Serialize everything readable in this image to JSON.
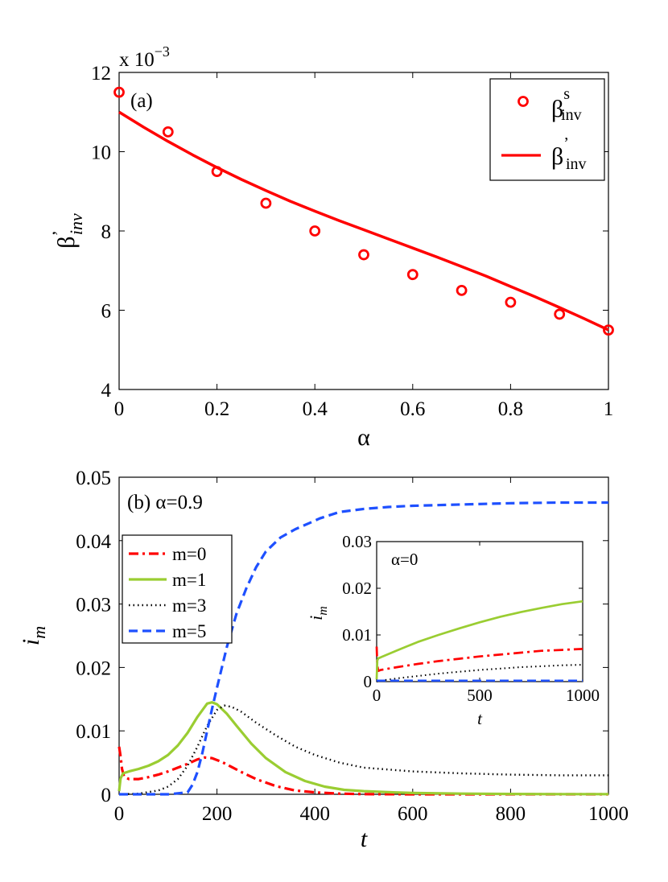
{
  "colors": {
    "red": "#ff0000",
    "green": "#9acd32",
    "black": "#000000",
    "blue": "#1e50ff"
  },
  "chart_data": [
    {
      "type": "line",
      "panel_label": "(a)",
      "exponent_label": "x 10",
      "exponent_power": "−3",
      "xlabel": "α",
      "ylabel": "β",
      "ylabel_prime": "’",
      "ylabel_sub": "inv",
      "xlim": [
        0,
        1
      ],
      "ylim": [
        4,
        12
      ],
      "x_ticks": [
        "0",
        "0.2",
        "0.4",
        "0.6",
        "0.8",
        "1"
      ],
      "y_ticks": [
        "4",
        "6",
        "8",
        "10",
        "12"
      ],
      "legend_position": "top-right",
      "legend": [
        {
          "symbol": "β",
          "sup": "s",
          "sub": "inv"
        },
        {
          "symbol": "β",
          "sup": "’",
          "sub": "inv"
        }
      ],
      "series": [
        {
          "name": "β^s_inv",
          "style": "markers-circle",
          "x": [
            0,
            0.1,
            0.2,
            0.3,
            0.4,
            0.5,
            0.6,
            0.7,
            0.8,
            0.9,
            1.0
          ],
          "y": [
            11.5,
            10.5,
            9.5,
            8.7,
            8.0,
            7.4,
            6.9,
            6.5,
            6.2,
            5.9,
            5.5
          ]
        },
        {
          "name": "β'_inv",
          "style": "solid-line",
          "x": [
            0,
            0.05,
            0.1,
            0.15,
            0.2,
            0.25,
            0.3,
            0.35,
            0.4,
            0.45,
            0.5,
            0.55,
            0.6,
            0.65,
            0.7,
            0.75,
            0.8,
            0.85,
            0.9,
            0.95,
            1.0
          ],
          "y": [
            11.0,
            10.62,
            10.26,
            9.92,
            9.6,
            9.3,
            9.02,
            8.75,
            8.5,
            8.26,
            8.03,
            7.8,
            7.57,
            7.34,
            7.1,
            6.86,
            6.6,
            6.34,
            6.07,
            5.79,
            5.5
          ]
        }
      ]
    },
    {
      "type": "line",
      "panel_label": "(b) α=0.9",
      "xlabel": "t",
      "ylabel": "i",
      "ylabel_sub": "m",
      "xlim": [
        0,
        1000
      ],
      "ylim": [
        0,
        0.05
      ],
      "x_ticks": [
        "0",
        "200",
        "400",
        "600",
        "800",
        "1000"
      ],
      "y_ticks": [
        "0",
        "0.01",
        "0.02",
        "0.03",
        "0.04",
        "0.05"
      ],
      "legend_position": "middle-left",
      "legend": [
        "m=0",
        "m=1",
        "m=3",
        "m=5"
      ],
      "series": [
        {
          "name": "m=0",
          "style": "dash-dot-red",
          "x": [
            0,
            3,
            6,
            10,
            20,
            40,
            60,
            80,
            100,
            120,
            140,
            160,
            175,
            190,
            210,
            230,
            250,
            280,
            320,
            360,
            400,
            450,
            500,
            600,
            700,
            800,
            900,
            1000
          ],
          "y": [
            0.0075,
            0.006,
            0.004,
            0.0028,
            0.0024,
            0.0024,
            0.0027,
            0.0031,
            0.0036,
            0.0042,
            0.0048,
            0.0055,
            0.0058,
            0.0057,
            0.0051,
            0.0043,
            0.0035,
            0.0024,
            0.0013,
            0.0006,
            0.0003,
            0.0001,
            3e-05,
            0,
            0,
            0,
            0,
            0
          ]
        },
        {
          "name": "m=1",
          "style": "solid-green",
          "x": [
            0,
            3,
            8,
            20,
            40,
            60,
            80,
            100,
            120,
            140,
            160,
            180,
            190,
            200,
            220,
            240,
            270,
            300,
            340,
            380,
            420,
            460,
            500,
            560,
            600,
            700,
            800,
            900,
            1000
          ],
          "y": [
            0.0005,
            0.0025,
            0.0033,
            0.0036,
            0.004,
            0.0045,
            0.0052,
            0.0062,
            0.0077,
            0.0097,
            0.0122,
            0.0143,
            0.0145,
            0.0142,
            0.0127,
            0.0108,
            0.008,
            0.0057,
            0.0035,
            0.0021,
            0.0012,
            0.0007,
            0.0005,
            0.0003,
            0.0002,
            0.0001,
            5e-05,
            3e-05,
            2e-05
          ]
        },
        {
          "name": "m=3",
          "style": "dotted-black",
          "x": [
            0,
            40,
            80,
            100,
            120,
            140,
            160,
            180,
            200,
            215,
            230,
            250,
            280,
            320,
            360,
            400,
            450,
            500,
            600,
            700,
            800,
            900,
            1000
          ],
          "y": [
            0,
            0.0001,
            0.0006,
            0.0012,
            0.0024,
            0.0045,
            0.0075,
            0.0108,
            0.0133,
            0.014,
            0.0138,
            0.013,
            0.0113,
            0.0093,
            0.0075,
            0.0062,
            0.005,
            0.0042,
            0.0036,
            0.0033,
            0.0031,
            0.003,
            0.003
          ]
        },
        {
          "name": "m=5",
          "style": "dashed-blue",
          "x": [
            0,
            100,
            140,
            150,
            160,
            170,
            180,
            190,
            200,
            210,
            220,
            240,
            260,
            280,
            300,
            330,
            360,
            390,
            410,
            450,
            500,
            550,
            600,
            700,
            800,
            900,
            1000
          ],
          "y": [
            0,
            0,
            0.0003,
            0.0015,
            0.0035,
            0.0065,
            0.01,
            0.0135,
            0.0168,
            0.02,
            0.0232,
            0.0285,
            0.0325,
            0.0358,
            0.0383,
            0.0405,
            0.0418,
            0.0428,
            0.0435,
            0.0445,
            0.045,
            0.0453,
            0.0455,
            0.0457,
            0.0459,
            0.046,
            0.046
          ]
        }
      ]
    },
    {
      "type": "line",
      "panel_label": "α=0",
      "is_inset": true,
      "xlabel": "t",
      "ylabel": "i",
      "ylabel_sub": "m",
      "xlim": [
        0,
        1000
      ],
      "ylim": [
        0,
        0.03
      ],
      "x_ticks": [
        "0",
        "500",
        "1000"
      ],
      "y_ticks": [
        "0",
        "0.01",
        "0.02",
        "0.03"
      ],
      "series": [
        {
          "name": "m=0",
          "style": "dash-dot-red",
          "x": [
            0,
            3,
            8,
            20,
            100,
            200,
            300,
            400,
            500,
            600,
            700,
            800,
            900,
            1000
          ],
          "y": [
            0.0075,
            0.0035,
            0.0023,
            0.0025,
            0.0031,
            0.0038,
            0.0044,
            0.0049,
            0.0054,
            0.0058,
            0.0062,
            0.0066,
            0.0068,
            0.007
          ]
        },
        {
          "name": "m=1",
          "style": "solid-green",
          "x": [
            0,
            3,
            8,
            20,
            100,
            200,
            300,
            400,
            500,
            600,
            700,
            800,
            900,
            1000
          ],
          "y": [
            0.0005,
            0.0045,
            0.005,
            0.0052,
            0.0067,
            0.0085,
            0.01,
            0.0114,
            0.0127,
            0.0139,
            0.0149,
            0.0158,
            0.0166,
            0.0172
          ]
        },
        {
          "name": "m=3",
          "style": "dotted-black",
          "x": [
            0,
            10,
            50,
            100,
            200,
            300,
            400,
            500,
            600,
            700,
            800,
            900,
            1000
          ],
          "y": [
            0,
            0.0001,
            0.0004,
            0.0007,
            0.0012,
            0.0017,
            0.0021,
            0.0025,
            0.0028,
            0.0031,
            0.0033,
            0.0035,
            0.0036
          ]
        },
        {
          "name": "m=5",
          "style": "dashed-blue",
          "x": [
            0,
            1000
          ],
          "y": [
            0.0002,
            0.0002
          ]
        }
      ]
    }
  ]
}
